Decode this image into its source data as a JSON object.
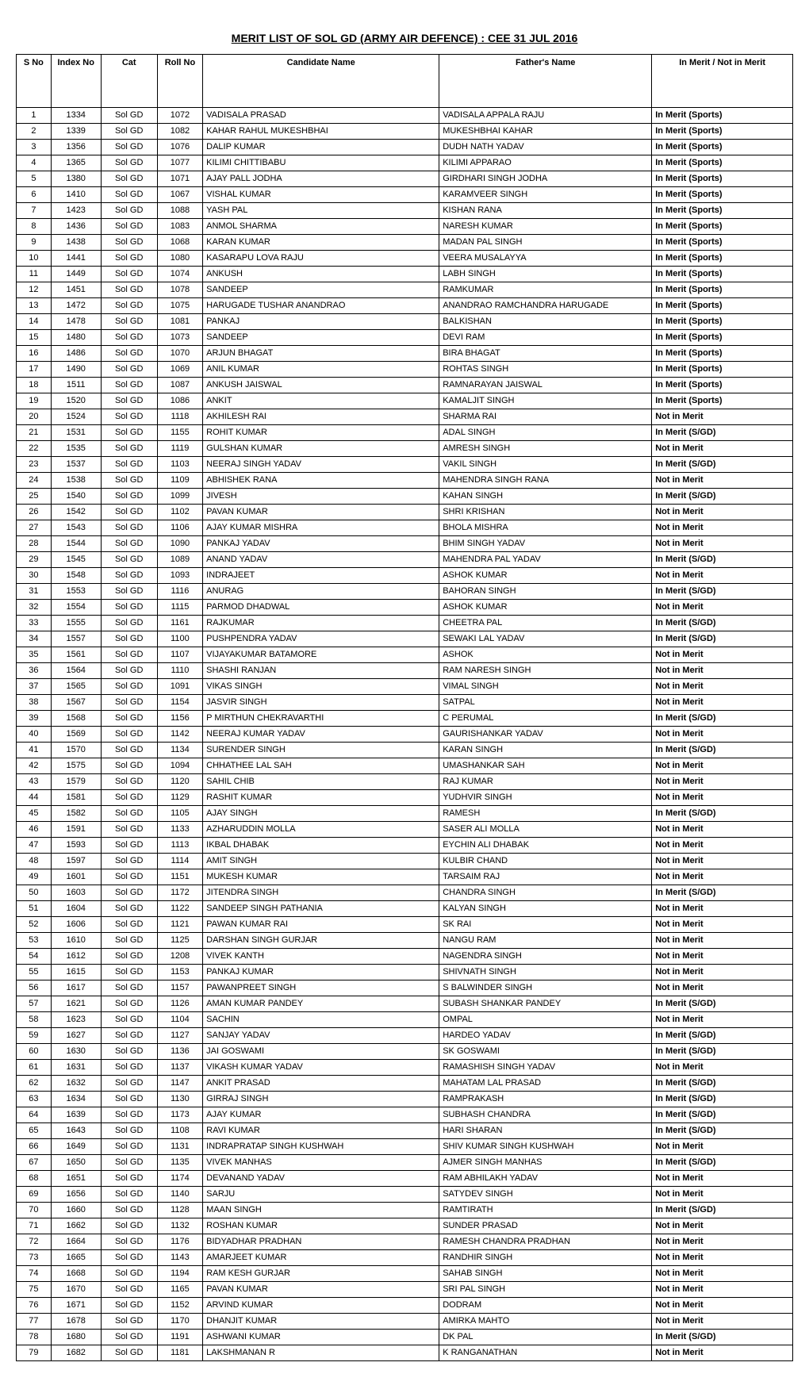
{
  "title": "MERIT LIST OF SOL GD (ARMY AIR DEFENCE) :  CEE 31 JUL 2016",
  "headers": {
    "sno": "S No",
    "index": "Index No",
    "cat": "Cat",
    "roll": "Roll No",
    "candidate": "Candidate Name",
    "father": "Father's Name",
    "merit": "In Merit  / Not in Merit"
  },
  "rows": [
    {
      "s": "1",
      "idx": "1334",
      "cat": "Sol GD",
      "roll": "1072",
      "name": "VADISALA PRASAD",
      "father": "VADISALA APPALA RAJU",
      "merit": "In Merit (Sports)"
    },
    {
      "s": "2",
      "idx": "1339",
      "cat": "Sol GD",
      "roll": "1082",
      "name": "KAHAR RAHUL MUKESHBHAI",
      "father": "MUKESHBHAI KAHAR",
      "merit": "In Merit (Sports)"
    },
    {
      "s": "3",
      "idx": "1356",
      "cat": "Sol GD",
      "roll": "1076",
      "name": "DALIP KUMAR",
      "father": "DUDH NATH YADAV",
      "merit": "In Merit (Sports)"
    },
    {
      "s": "4",
      "idx": "1365",
      "cat": "Sol GD",
      "roll": "1077",
      "name": "KILIMI CHITTIBABU",
      "father": "KILIMI APPARAO",
      "merit": "In Merit (Sports)"
    },
    {
      "s": "5",
      "idx": "1380",
      "cat": "Sol GD",
      "roll": "1071",
      "name": "AJAY PALL JODHA",
      "father": "GIRDHARI SINGH JODHA",
      "merit": "In Merit (Sports)"
    },
    {
      "s": "6",
      "idx": "1410",
      "cat": "Sol GD",
      "roll": "1067",
      "name": "VISHAL KUMAR",
      "father": "KARAMVEER SINGH",
      "merit": "In Merit (Sports)"
    },
    {
      "s": "7",
      "idx": "1423",
      "cat": "Sol GD",
      "roll": "1088",
      "name": "YASH PAL",
      "father": "KISHAN RANA",
      "merit": "In Merit (Sports)"
    },
    {
      "s": "8",
      "idx": "1436",
      "cat": "Sol GD",
      "roll": "1083",
      "name": "ANMOL SHARMA",
      "father": "NARESH KUMAR",
      "merit": "In Merit (Sports)"
    },
    {
      "s": "9",
      "idx": "1438",
      "cat": "Sol GD",
      "roll": "1068",
      "name": "KARAN KUMAR",
      "father": "MADAN PAL SINGH",
      "merit": "In Merit (Sports)"
    },
    {
      "s": "10",
      "idx": "1441",
      "cat": "Sol GD",
      "roll": "1080",
      "name": "KASARAPU LOVA RAJU",
      "father": "VEERA MUSALAYYA",
      "merit": "In Merit (Sports)"
    },
    {
      "s": "11",
      "idx": "1449",
      "cat": "Sol GD",
      "roll": "1074",
      "name": "ANKUSH",
      "father": "LABH SINGH",
      "merit": "In Merit (Sports)"
    },
    {
      "s": "12",
      "idx": "1451",
      "cat": "Sol GD",
      "roll": "1078",
      "name": "SANDEEP",
      "father": "RAMKUMAR",
      "merit": "In Merit (Sports)"
    },
    {
      "s": "13",
      "idx": "1472",
      "cat": "Sol GD",
      "roll": "1075",
      "name": "HARUGADE TUSHAR ANANDRAO",
      "father": "ANANDRAO RAMCHANDRA HARUGADE",
      "merit": "In Merit (Sports)",
      "wrap": true
    },
    {
      "s": "14",
      "idx": "1478",
      "cat": "Sol GD",
      "roll": "1081",
      "name": "PANKAJ",
      "father": "BALKISHAN",
      "merit": "In Merit (Sports)"
    },
    {
      "s": "15",
      "idx": "1480",
      "cat": "Sol GD",
      "roll": "1073",
      "name": "SANDEEP",
      "father": "DEVI RAM",
      "merit": "In Merit (Sports)"
    },
    {
      "s": "16",
      "idx": "1486",
      "cat": "Sol GD",
      "roll": "1070",
      "name": "ARJUN BHAGAT",
      "father": "BIRA BHAGAT",
      "merit": "In Merit (Sports)"
    },
    {
      "s": "17",
      "idx": "1490",
      "cat": "Sol GD",
      "roll": "1069",
      "name": "ANIL KUMAR",
      "father": "ROHTAS SINGH",
      "merit": "In Merit (Sports)"
    },
    {
      "s": "18",
      "idx": "1511",
      "cat": "Sol GD",
      "roll": "1087",
      "name": "ANKUSH JAISWAL",
      "father": "RAMNARAYAN JAISWAL",
      "merit": "In Merit (Sports)"
    },
    {
      "s": "19",
      "idx": "1520",
      "cat": "Sol GD",
      "roll": "1086",
      "name": "ANKIT",
      "father": "KAMALJIT SINGH",
      "merit": "In Merit (Sports)"
    },
    {
      "s": "20",
      "idx": "1524",
      "cat": "Sol GD",
      "roll": "1118",
      "name": "AKHILESH RAI",
      "father": "SHARMA RAI",
      "merit": "Not in Merit"
    },
    {
      "s": "21",
      "idx": "1531",
      "cat": "Sol GD",
      "roll": "1155",
      "name": "ROHIT KUMAR",
      "father": "ADAL SINGH",
      "merit": "In Merit (S/GD)"
    },
    {
      "s": "22",
      "idx": "1535",
      "cat": "Sol GD",
      "roll": "1119",
      "name": "GULSHAN KUMAR",
      "father": "AMRESH SINGH",
      "merit": "Not in Merit"
    },
    {
      "s": "23",
      "idx": "1537",
      "cat": "Sol GD",
      "roll": "1103",
      "name": "NEERAJ SINGH YADAV",
      "father": "VAKIL SINGH",
      "merit": "In Merit (S/GD)"
    },
    {
      "s": "24",
      "idx": "1538",
      "cat": "Sol GD",
      "roll": "1109",
      "name": "ABHISHEK RANA",
      "father": "MAHENDRA SINGH RANA",
      "merit": "Not in Merit"
    },
    {
      "s": "25",
      "idx": "1540",
      "cat": "Sol GD",
      "roll": "1099",
      "name": "JIVESH",
      "father": "KAHAN SINGH",
      "merit": "In Merit (S/GD)"
    },
    {
      "s": "26",
      "idx": "1542",
      "cat": "Sol GD",
      "roll": "1102",
      "name": "PAVAN KUMAR",
      "father": "SHRI KRISHAN",
      "merit": "Not in Merit"
    },
    {
      "s": "27",
      "idx": "1543",
      "cat": "Sol GD",
      "roll": "1106",
      "name": "AJAY KUMAR MISHRA",
      "father": "BHOLA MISHRA",
      "merit": "Not in Merit"
    },
    {
      "s": "28",
      "idx": "1544",
      "cat": "Sol GD",
      "roll": "1090",
      "name": "PANKAJ YADAV",
      "father": "BHIM SINGH YADAV",
      "merit": "Not in Merit"
    },
    {
      "s": "29",
      "idx": "1545",
      "cat": "Sol GD",
      "roll": "1089",
      "name": "ANAND YADAV",
      "father": "MAHENDRA PAL YADAV",
      "merit": "In Merit (S/GD)"
    },
    {
      "s": "30",
      "idx": "1548",
      "cat": "Sol GD",
      "roll": "1093",
      "name": "INDRAJEET",
      "father": "ASHOK KUMAR",
      "merit": "Not in Merit"
    },
    {
      "s": "31",
      "idx": "1553",
      "cat": "Sol GD",
      "roll": "1116",
      "name": "ANURAG",
      "father": "BAHORAN SINGH",
      "merit": "In Merit (S/GD)"
    },
    {
      "s": "32",
      "idx": "1554",
      "cat": "Sol GD",
      "roll": "1115",
      "name": "PARMOD DHADWAL",
      "father": "ASHOK KUMAR",
      "merit": "Not in Merit"
    },
    {
      "s": "33",
      "idx": "1555",
      "cat": "Sol GD",
      "roll": "1161",
      "name": "RAJKUMAR",
      "father": "CHEETRA PAL",
      "merit": "In Merit (S/GD)"
    },
    {
      "s": "34",
      "idx": "1557",
      "cat": "Sol GD",
      "roll": "1100",
      "name": "PUSHPENDRA YADAV",
      "father": "SEWAKI LAL YADAV",
      "merit": "In Merit (S/GD)"
    },
    {
      "s": "35",
      "idx": "1561",
      "cat": "Sol GD",
      "roll": "1107",
      "name": "VIJAYAKUMAR BATAMORE",
      "father": "ASHOK",
      "merit": "Not in Merit"
    },
    {
      "s": "36",
      "idx": "1564",
      "cat": "Sol GD",
      "roll": "1110",
      "name": "SHASHI RANJAN",
      "father": "RAM NARESH SINGH",
      "merit": "Not in Merit"
    },
    {
      "s": "37",
      "idx": "1565",
      "cat": "Sol GD",
      "roll": "1091",
      "name": "VIKAS SINGH",
      "father": "VIMAL SINGH",
      "merit": "Not in Merit"
    },
    {
      "s": "38",
      "idx": "1567",
      "cat": "Sol GD",
      "roll": "1154",
      "name": "JASVIR SINGH",
      "father": "SATPAL",
      "merit": "Not in Merit"
    },
    {
      "s": "39",
      "idx": "1568",
      "cat": "Sol GD",
      "roll": "1156",
      "name": "P MIRTHUN CHEKRAVARTHI",
      "father": "C PERUMAL",
      "merit": "In Merit (S/GD)"
    },
    {
      "s": "40",
      "idx": "1569",
      "cat": "Sol GD",
      "roll": "1142",
      "name": "NEERAJ KUMAR YADAV",
      "father": "GAURISHANKAR YADAV",
      "merit": "Not in Merit"
    },
    {
      "s": "41",
      "idx": "1570",
      "cat": "Sol GD",
      "roll": "1134",
      "name": "SURENDER SINGH",
      "father": "KARAN SINGH",
      "merit": "In Merit (S/GD)"
    },
    {
      "s": "42",
      "idx": "1575",
      "cat": "Sol GD",
      "roll": "1094",
      "name": "CHHATHEE LAL SAH",
      "father": "UMASHANKAR SAH",
      "merit": "Not in Merit"
    },
    {
      "s": "43",
      "idx": "1579",
      "cat": "Sol GD",
      "roll": "1120",
      "name": "SAHIL CHIB",
      "father": "RAJ KUMAR",
      "merit": "Not in Merit"
    },
    {
      "s": "44",
      "idx": "1581",
      "cat": "Sol GD",
      "roll": "1129",
      "name": "RASHIT KUMAR",
      "father": "YUDHVIR SINGH",
      "merit": "Not in Merit"
    },
    {
      "s": "45",
      "idx": "1582",
      "cat": "Sol GD",
      "roll": "1105",
      "name": "AJAY SINGH",
      "father": "RAMESH",
      "merit": "In Merit (S/GD)"
    },
    {
      "s": "46",
      "idx": "1591",
      "cat": "Sol GD",
      "roll": "1133",
      "name": "AZHARUDDIN MOLLA",
      "father": "SASER ALI MOLLA",
      "merit": "Not in Merit"
    },
    {
      "s": "47",
      "idx": "1593",
      "cat": "Sol GD",
      "roll": "1113",
      "name": "IKBAL DHABAK",
      "father": "EYCHIN ALI DHABAK",
      "merit": "Not in Merit"
    },
    {
      "s": "48",
      "idx": "1597",
      "cat": "Sol GD",
      "roll": "1114",
      "name": "AMIT SINGH",
      "father": "KULBIR CHAND",
      "merit": "Not in Merit"
    },
    {
      "s": "49",
      "idx": "1601",
      "cat": "Sol GD",
      "roll": "1151",
      "name": "MUKESH KUMAR",
      "father": "TARSAIM RAJ",
      "merit": "Not in Merit"
    },
    {
      "s": "50",
      "idx": "1603",
      "cat": "Sol GD",
      "roll": "1172",
      "name": "JITENDRA SINGH",
      "father": "CHANDRA SINGH",
      "merit": "In Merit (S/GD)"
    },
    {
      "s": "51",
      "idx": "1604",
      "cat": "Sol GD",
      "roll": "1122",
      "name": "SANDEEP SINGH PATHANIA",
      "father": "KALYAN SINGH",
      "merit": "Not in Merit"
    },
    {
      "s": "52",
      "idx": "1606",
      "cat": "Sol GD",
      "roll": "1121",
      "name": "PAWAN KUMAR RAI",
      "father": "SK RAI",
      "merit": "Not in Merit"
    },
    {
      "s": "53",
      "idx": "1610",
      "cat": "Sol GD",
      "roll": "1125",
      "name": "DARSHAN SINGH GURJAR",
      "father": "NANGU RAM",
      "merit": "Not in Merit"
    },
    {
      "s": "54",
      "idx": "1612",
      "cat": "Sol GD",
      "roll": "1208",
      "name": "VIVEK KANTH",
      "father": "NAGENDRA SINGH",
      "merit": "Not in Merit"
    },
    {
      "s": "55",
      "idx": "1615",
      "cat": "Sol GD",
      "roll": "1153",
      "name": "PANKAJ KUMAR",
      "father": "SHIVNATH SINGH",
      "merit": "Not in Merit"
    },
    {
      "s": "56",
      "idx": "1617",
      "cat": "Sol GD",
      "roll": "1157",
      "name": "PAWANPREET SINGH",
      "father": "S BALWINDER SINGH",
      "merit": "Not in Merit"
    },
    {
      "s": "57",
      "idx": "1621",
      "cat": "Sol GD",
      "roll": "1126",
      "name": "AMAN KUMAR PANDEY",
      "father": "SUBASH SHANKAR PANDEY",
      "merit": "In Merit (S/GD)"
    },
    {
      "s": "58",
      "idx": "1623",
      "cat": "Sol GD",
      "roll": "1104",
      "name": "SACHIN",
      "father": "OMPAL",
      "merit": "Not in Merit"
    },
    {
      "s": "59",
      "idx": "1627",
      "cat": "Sol GD",
      "roll": "1127",
      "name": "SANJAY YADAV",
      "father": "HARDEO YADAV",
      "merit": "In Merit (S/GD)"
    },
    {
      "s": "60",
      "idx": "1630",
      "cat": "Sol GD",
      "roll": "1136",
      "name": "JAI GOSWAMI",
      "father": "SK GOSWAMI",
      "merit": "In Merit (S/GD)"
    },
    {
      "s": "61",
      "idx": "1631",
      "cat": "Sol GD",
      "roll": "1137",
      "name": "VIKASH KUMAR YADAV",
      "father": "RAMASHISH SINGH YADAV",
      "merit": "Not in Merit"
    },
    {
      "s": "62",
      "idx": "1632",
      "cat": "Sol GD",
      "roll": "1147",
      "name": "ANKIT PRASAD",
      "father": "MAHATAM LAL PRASAD",
      "merit": "In Merit (S/GD)"
    },
    {
      "s": "63",
      "idx": "1634",
      "cat": "Sol GD",
      "roll": "1130",
      "name": "GIRRAJ SINGH",
      "father": "RAMPRAKASH",
      "merit": "In Merit (S/GD)"
    },
    {
      "s": "64",
      "idx": "1639",
      "cat": "Sol GD",
      "roll": "1173",
      "name": "AJAY KUMAR",
      "father": "SUBHASH CHANDRA",
      "merit": "In Merit (S/GD)"
    },
    {
      "s": "65",
      "idx": "1643",
      "cat": "Sol GD",
      "roll": "1108",
      "name": "RAVI KUMAR",
      "father": "HARI SHARAN",
      "merit": "In Merit (S/GD)"
    },
    {
      "s": "66",
      "idx": "1649",
      "cat": "Sol GD",
      "roll": "1131",
      "name": "INDRAPRATAP SINGH KUSHWAH",
      "father": "SHIV KUMAR SINGH KUSHWAH",
      "merit": "Not in Merit"
    },
    {
      "s": "67",
      "idx": "1650",
      "cat": "Sol GD",
      "roll": "1135",
      "name": "VIVEK MANHAS",
      "father": "AJMER SINGH MANHAS",
      "merit": "In Merit (S/GD)"
    },
    {
      "s": "68",
      "idx": "1651",
      "cat": "Sol GD",
      "roll": "1174",
      "name": "DEVANAND YADAV",
      "father": "RAM ABHILAKH YADAV",
      "merit": "Not in Merit"
    },
    {
      "s": "69",
      "idx": "1656",
      "cat": "Sol GD",
      "roll": "1140",
      "name": "SARJU",
      "father": "SATYDEV SINGH",
      "merit": "Not in Merit"
    },
    {
      "s": "70",
      "idx": "1660",
      "cat": "Sol GD",
      "roll": "1128",
      "name": "MAAN SINGH",
      "father": "RAMTIRATH",
      "merit": "In Merit (S/GD)"
    },
    {
      "s": "71",
      "idx": "1662",
      "cat": "Sol GD",
      "roll": "1132",
      "name": "ROSHAN KUMAR",
      "father": "SUNDER PRASAD",
      "merit": "Not in Merit"
    },
    {
      "s": "72",
      "idx": "1664",
      "cat": "Sol GD",
      "roll": "1176",
      "name": "BIDYADHAR PRADHAN",
      "father": "RAMESH CHANDRA PRADHAN",
      "merit": "Not in Merit"
    },
    {
      "s": "73",
      "idx": "1665",
      "cat": "Sol GD",
      "roll": "1143",
      "name": "AMARJEET KUMAR",
      "father": "RANDHIR SINGH",
      "merit": "Not in Merit"
    },
    {
      "s": "74",
      "idx": "1668",
      "cat": "Sol GD",
      "roll": "1194",
      "name": "RAM KESH GURJAR",
      "father": "SAHAB SINGH",
      "merit": "Not in Merit"
    },
    {
      "s": "75",
      "idx": "1670",
      "cat": "Sol GD",
      "roll": "1165",
      "name": "PAVAN KUMAR",
      "father": "SRI PAL SINGH",
      "merit": "Not in Merit"
    },
    {
      "s": "76",
      "idx": "1671",
      "cat": "Sol GD",
      "roll": "1152",
      "name": "ARVIND KUMAR",
      "father": "DODRAM",
      "merit": "Not in Merit"
    },
    {
      "s": "77",
      "idx": "1678",
      "cat": "Sol GD",
      "roll": "1170",
      "name": "DHANJIT KUMAR",
      "father": "AMIRKA MAHTO",
      "merit": "Not in Merit"
    },
    {
      "s": "78",
      "idx": "1680",
      "cat": "Sol GD",
      "roll": "1191",
      "name": "ASHWANI KUMAR",
      "father": "DK PAL",
      "merit": "In Merit (S/GD)"
    },
    {
      "s": "79",
      "idx": "1682",
      "cat": "Sol GD",
      "roll": "1181",
      "name": "LAKSHMANAN R",
      "father": "K RANGANATHAN",
      "merit": "Not in Merit"
    }
  ]
}
